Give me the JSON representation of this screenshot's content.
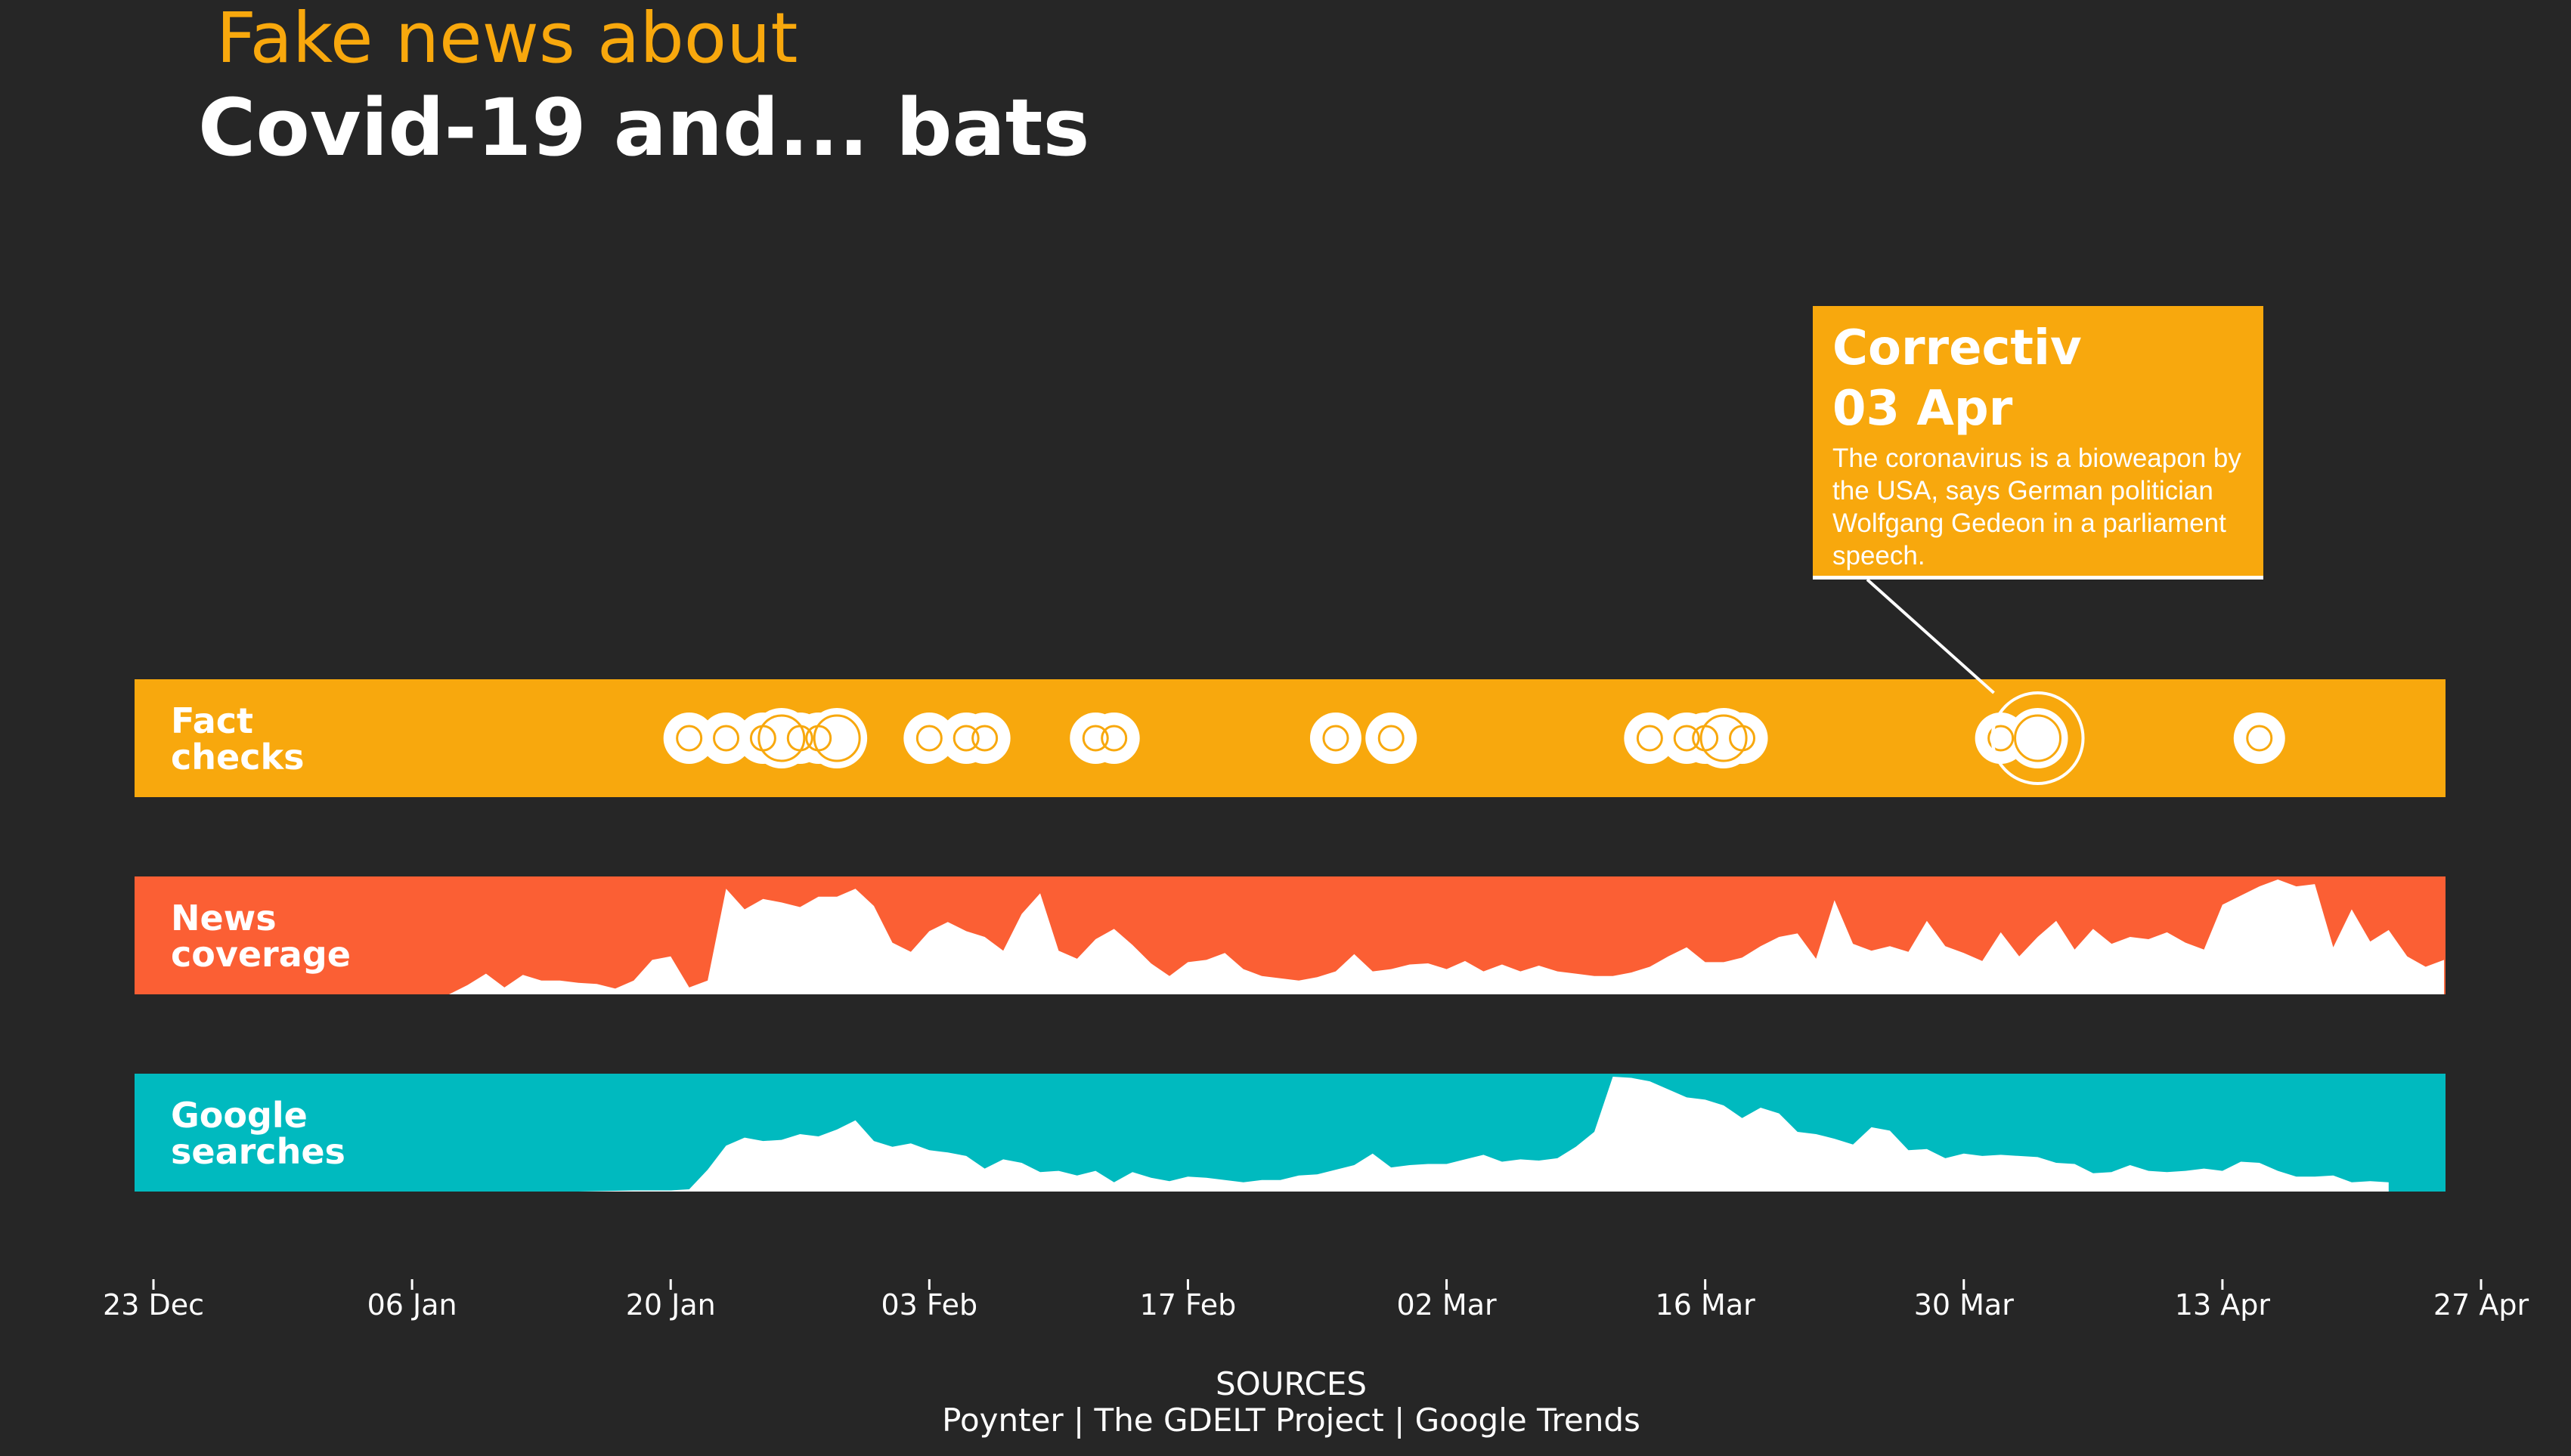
{
  "header": {
    "subtitle": "Fake news about",
    "title": "Covid-19 and... bats"
  },
  "tooltip": {
    "org": "Correctiv",
    "date": "03 Apr",
    "text": "The coronavirus is a bioweapon by the USA, says German politician Wolfgang Gedeon in a parliament speech."
  },
  "sources": {
    "heading": "SOURCES",
    "list": "Poynter | The GDELT Project | Google Trends"
  },
  "colors": {
    "background": "#262626",
    "fact_checks": "#f8a80d",
    "news_coverage": "#fb5f34",
    "google_searches": "#00babf",
    "fill": "#ffffff"
  },
  "chart_data": {
    "type": "area",
    "x_ticks": [
      "23 Dec",
      "06 Jan",
      "20 Jan",
      "03 Feb",
      "17 Feb",
      "02 Mar",
      "16 Mar",
      "30 Mar",
      "13 Apr",
      "27 Apr"
    ],
    "x_range": [
      "2019-12-23",
      "2020-04-27"
    ],
    "rows": [
      {
        "name": "Fact checks",
        "label_line1": "Fact",
        "label_line2": "checks",
        "type": "dots",
        "color": "#f8a80d",
        "events": [
          {
            "date": "2020-01-21",
            "size": 1
          },
          {
            "date": "2020-01-23",
            "size": 1
          },
          {
            "date": "2020-01-25",
            "size": 1
          },
          {
            "date": "2020-01-26",
            "size": 2
          },
          {
            "date": "2020-01-27",
            "size": 1
          },
          {
            "date": "2020-01-28",
            "size": 1
          },
          {
            "date": "2020-01-29",
            "size": 2
          },
          {
            "date": "2020-02-03",
            "size": 1
          },
          {
            "date": "2020-02-05",
            "size": 1
          },
          {
            "date": "2020-02-06",
            "size": 1
          },
          {
            "date": "2020-02-12",
            "size": 1
          },
          {
            "date": "2020-02-13",
            "size": 1
          },
          {
            "date": "2020-02-25",
            "size": 1
          },
          {
            "date": "2020-02-28",
            "size": 1
          },
          {
            "date": "2020-03-13",
            "size": 1
          },
          {
            "date": "2020-03-15",
            "size": 1
          },
          {
            "date": "2020-03-16",
            "size": 1
          },
          {
            "date": "2020-03-17",
            "size": 2
          },
          {
            "date": "2020-03-18",
            "size": 1
          },
          {
            "date": "2020-04-01",
            "size": 1
          },
          {
            "date": "2020-04-03",
            "size": 2,
            "highlight": true
          },
          {
            "date": "2020-04-15",
            "size": 1
          }
        ]
      },
      {
        "name": "News coverage",
        "label_line1": "News",
        "label_line2": "coverage",
        "type": "area",
        "color": "#fb5f34",
        "points": [
          [
            "2020-01-06",
            0.0
          ],
          [
            "2020-01-08",
            0.0
          ],
          [
            "2020-01-09",
            0.08
          ],
          [
            "2020-01-10",
            0.18
          ],
          [
            "2020-01-11",
            0.06
          ],
          [
            "2020-01-12",
            0.17
          ],
          [
            "2020-01-13",
            0.12
          ],
          [
            "2020-01-14",
            0.12
          ],
          [
            "2020-01-15",
            0.1
          ],
          [
            "2020-01-16",
            0.09
          ],
          [
            "2020-01-17",
            0.05
          ],
          [
            "2020-01-18",
            0.12
          ],
          [
            "2020-01-19",
            0.3
          ],
          [
            "2020-01-20",
            0.33
          ],
          [
            "2020-01-21",
            0.06
          ],
          [
            "2020-01-22",
            0.12
          ],
          [
            "2020-01-23",
            0.92
          ],
          [
            "2020-01-24",
            0.74
          ],
          [
            "2020-01-25",
            0.83
          ],
          [
            "2020-01-26",
            0.8
          ],
          [
            "2020-01-27",
            0.76
          ],
          [
            "2020-01-28",
            0.85
          ],
          [
            "2020-01-29",
            0.85
          ],
          [
            "2020-01-30",
            0.92
          ],
          [
            "2020-01-31",
            0.77
          ],
          [
            "2020-02-01",
            0.45
          ],
          [
            "2020-02-02",
            0.37
          ],
          [
            "2020-02-03",
            0.55
          ],
          [
            "2020-02-04",
            0.63
          ],
          [
            "2020-02-05",
            0.55
          ],
          [
            "2020-02-06",
            0.5
          ],
          [
            "2020-02-07",
            0.38
          ],
          [
            "2020-02-08",
            0.7
          ],
          [
            "2020-02-09",
            0.88
          ],
          [
            "2020-02-10",
            0.38
          ],
          [
            "2020-02-11",
            0.31
          ],
          [
            "2020-02-12",
            0.48
          ],
          [
            "2020-02-13",
            0.57
          ],
          [
            "2020-02-14",
            0.43
          ],
          [
            "2020-02-15",
            0.27
          ],
          [
            "2020-02-16",
            0.16
          ],
          [
            "2020-02-17",
            0.28
          ],
          [
            "2020-02-18",
            0.3
          ],
          [
            "2020-02-19",
            0.36
          ],
          [
            "2020-02-20",
            0.22
          ],
          [
            "2020-02-21",
            0.16
          ],
          [
            "2020-02-22",
            0.14
          ],
          [
            "2020-02-23",
            0.12
          ],
          [
            "2020-02-24",
            0.15
          ],
          [
            "2020-02-25",
            0.2
          ],
          [
            "2020-02-26",
            0.35
          ],
          [
            "2020-02-27",
            0.2
          ],
          [
            "2020-02-28",
            0.22
          ],
          [
            "2020-02-29",
            0.26
          ],
          [
            "2020-03-01",
            0.27
          ],
          [
            "2020-03-02",
            0.22
          ],
          [
            "2020-03-03",
            0.29
          ],
          [
            "2020-03-04",
            0.2
          ],
          [
            "2020-03-05",
            0.26
          ],
          [
            "2020-03-06",
            0.2
          ],
          [
            "2020-03-07",
            0.25
          ],
          [
            "2020-03-08",
            0.2
          ],
          [
            "2020-03-09",
            0.18
          ],
          [
            "2020-03-10",
            0.16
          ],
          [
            "2020-03-11",
            0.16
          ],
          [
            "2020-03-12",
            0.19
          ],
          [
            "2020-03-13",
            0.24
          ],
          [
            "2020-03-14",
            0.33
          ],
          [
            "2020-03-15",
            0.41
          ],
          [
            "2020-03-16",
            0.28
          ],
          [
            "2020-03-17",
            0.28
          ],
          [
            "2020-03-18",
            0.32
          ],
          [
            "2020-03-19",
            0.42
          ],
          [
            "2020-03-20",
            0.5
          ],
          [
            "2020-03-21",
            0.53
          ],
          [
            "2020-03-22",
            0.31
          ],
          [
            "2020-03-23",
            0.82
          ],
          [
            "2020-03-24",
            0.44
          ],
          [
            "2020-03-25",
            0.38
          ],
          [
            "2020-03-26",
            0.42
          ],
          [
            "2020-03-27",
            0.37
          ],
          [
            "2020-03-28",
            0.64
          ],
          [
            "2020-03-29",
            0.42
          ],
          [
            "2020-03-30",
            0.36
          ],
          [
            "2020-03-31",
            0.29
          ],
          [
            "2020-04-01",
            0.54
          ],
          [
            "2020-04-02",
            0.33
          ],
          [
            "2020-04-03",
            0.5
          ],
          [
            "2020-04-04",
            0.64
          ],
          [
            "2020-04-05",
            0.39
          ],
          [
            "2020-04-06",
            0.57
          ],
          [
            "2020-04-07",
            0.44
          ],
          [
            "2020-04-08",
            0.5
          ],
          [
            "2020-04-09",
            0.48
          ],
          [
            "2020-04-10",
            0.54
          ],
          [
            "2020-04-11",
            0.45
          ],
          [
            "2020-04-12",
            0.39
          ],
          [
            "2020-04-13",
            0.78
          ],
          [
            "2020-04-14",
            0.86
          ],
          [
            "2020-04-15",
            0.94
          ],
          [
            "2020-04-16",
            1.0
          ],
          [
            "2020-04-17",
            0.94
          ],
          [
            "2020-04-18",
            0.96
          ],
          [
            "2020-04-19",
            0.41
          ],
          [
            "2020-04-20",
            0.74
          ],
          [
            "2020-04-21",
            0.46
          ],
          [
            "2020-04-22",
            0.56
          ],
          [
            "2020-04-23",
            0.33
          ],
          [
            "2020-04-24",
            0.24
          ],
          [
            "2020-04-25",
            0.3
          ]
        ]
      },
      {
        "name": "Google searches",
        "label_line1": "Google",
        "label_line2": "searches",
        "type": "area",
        "color": "#00babf",
        "points": [
          [
            "2020-01-15",
            0.0
          ],
          [
            "2020-01-18",
            0.01
          ],
          [
            "2020-01-20",
            0.01
          ],
          [
            "2020-01-21",
            0.02
          ],
          [
            "2020-01-22",
            0.19
          ],
          [
            "2020-01-23",
            0.4
          ],
          [
            "2020-01-24",
            0.47
          ],
          [
            "2020-01-25",
            0.44
          ],
          [
            "2020-01-26",
            0.45
          ],
          [
            "2020-01-27",
            0.5
          ],
          [
            "2020-01-28",
            0.48
          ],
          [
            "2020-01-29",
            0.54
          ],
          [
            "2020-01-30",
            0.62
          ],
          [
            "2020-01-31",
            0.44
          ],
          [
            "2020-02-01",
            0.39
          ],
          [
            "2020-02-02",
            0.42
          ],
          [
            "2020-02-03",
            0.36
          ],
          [
            "2020-02-04",
            0.34
          ],
          [
            "2020-02-05",
            0.31
          ],
          [
            "2020-02-06",
            0.2
          ],
          [
            "2020-02-07",
            0.28
          ],
          [
            "2020-02-08",
            0.25
          ],
          [
            "2020-02-09",
            0.17
          ],
          [
            "2020-02-10",
            0.18
          ],
          [
            "2020-02-11",
            0.14
          ],
          [
            "2020-02-12",
            0.18
          ],
          [
            "2020-02-13",
            0.08
          ],
          [
            "2020-02-14",
            0.17
          ],
          [
            "2020-02-15",
            0.12
          ],
          [
            "2020-02-16",
            0.09
          ],
          [
            "2020-02-17",
            0.13
          ],
          [
            "2020-02-18",
            0.12
          ],
          [
            "2020-02-19",
            0.1
          ],
          [
            "2020-02-20",
            0.08
          ],
          [
            "2020-02-21",
            0.1
          ],
          [
            "2020-02-22",
            0.1
          ],
          [
            "2020-02-23",
            0.14
          ],
          [
            "2020-02-24",
            0.15
          ],
          [
            "2020-02-25",
            0.19
          ],
          [
            "2020-02-26",
            0.23
          ],
          [
            "2020-02-27",
            0.33
          ],
          [
            "2020-02-28",
            0.21
          ],
          [
            "2020-02-29",
            0.23
          ],
          [
            "2020-03-01",
            0.24
          ],
          [
            "2020-03-02",
            0.24
          ],
          [
            "2020-03-03",
            0.28
          ],
          [
            "2020-03-04",
            0.32
          ],
          [
            "2020-03-05",
            0.26
          ],
          [
            "2020-03-06",
            0.28
          ],
          [
            "2020-03-07",
            0.27
          ],
          [
            "2020-03-08",
            0.29
          ],
          [
            "2020-03-09",
            0.39
          ],
          [
            "2020-03-10",
            0.52
          ],
          [
            "2020-03-11",
            1.0
          ],
          [
            "2020-03-12",
            0.99
          ],
          [
            "2020-03-13",
            0.96
          ],
          [
            "2020-03-14",
            0.89
          ],
          [
            "2020-03-15",
            0.82
          ],
          [
            "2020-03-16",
            0.8
          ],
          [
            "2020-03-17",
            0.75
          ],
          [
            "2020-03-18",
            0.64
          ],
          [
            "2020-03-19",
            0.73
          ],
          [
            "2020-03-20",
            0.68
          ],
          [
            "2020-03-21",
            0.52
          ],
          [
            "2020-03-22",
            0.5
          ],
          [
            "2020-03-23",
            0.46
          ],
          [
            "2020-03-24",
            0.41
          ],
          [
            "2020-03-25",
            0.56
          ],
          [
            "2020-03-26",
            0.53
          ],
          [
            "2020-03-27",
            0.36
          ],
          [
            "2020-03-28",
            0.37
          ],
          [
            "2020-03-29",
            0.29
          ],
          [
            "2020-03-30",
            0.33
          ],
          [
            "2020-03-31",
            0.31
          ],
          [
            "2020-04-01",
            0.32
          ],
          [
            "2020-04-02",
            0.31
          ],
          [
            "2020-04-03",
            0.3
          ],
          [
            "2020-04-04",
            0.25
          ],
          [
            "2020-04-05",
            0.24
          ],
          [
            "2020-04-06",
            0.16
          ],
          [
            "2020-04-07",
            0.17
          ],
          [
            "2020-04-08",
            0.23
          ],
          [
            "2020-04-09",
            0.18
          ],
          [
            "2020-04-10",
            0.17
          ],
          [
            "2020-04-11",
            0.18
          ],
          [
            "2020-04-12",
            0.2
          ],
          [
            "2020-04-13",
            0.18
          ],
          [
            "2020-04-14",
            0.26
          ],
          [
            "2020-04-15",
            0.25
          ],
          [
            "2020-04-16",
            0.18
          ],
          [
            "2020-04-17",
            0.13
          ],
          [
            "2020-04-18",
            0.13
          ],
          [
            "2020-04-19",
            0.14
          ],
          [
            "2020-04-20",
            0.08
          ],
          [
            "2020-04-21",
            0.09
          ],
          [
            "2020-04-22",
            0.08
          ]
        ]
      }
    ]
  }
}
